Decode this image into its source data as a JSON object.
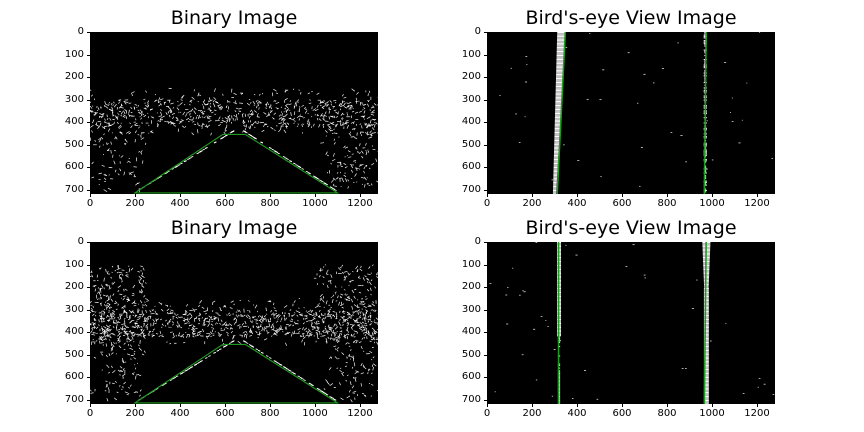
{
  "panels": [
    {
      "id": "binary-top",
      "title": "Binary Image",
      "type": "binary"
    },
    {
      "id": "birdseye-top",
      "title": "Bird's-eye View Image",
      "type": "birdseye"
    },
    {
      "id": "binary-bottom",
      "title": "Binary Image",
      "type": "binary"
    },
    {
      "id": "birdseye-bottom",
      "title": "Bird's-eye View Image",
      "type": "birdseye"
    }
  ],
  "x_ticks": [
    "0",
    "200",
    "400",
    "600",
    "800",
    "1000",
    "1200"
  ],
  "y_ticks": [
    "0",
    "100",
    "200",
    "300",
    "400",
    "500",
    "600",
    "700"
  ],
  "colors": {
    "background": "#000000",
    "edges": "#ffffff",
    "overlay": "#1f9c1f"
  }
}
